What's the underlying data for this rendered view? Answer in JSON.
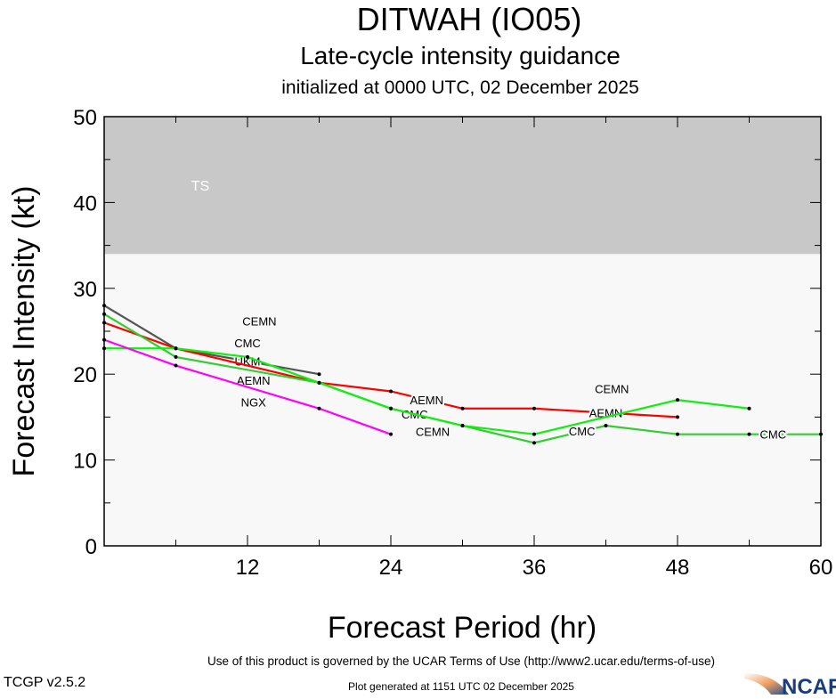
{
  "chart_data": {
    "type": "line",
    "title": "DITWAH (IO05)",
    "subtitle": "Late-cycle intensity guidance",
    "subtitle2": "initialized at 0000 UTC, 02 December 2025",
    "xlabel": "Forecast Period (hr)",
    "ylabel": "Forecast Intensity (kt)",
    "xlim": [
      0,
      60
    ],
    "ylim": [
      0,
      50
    ],
    "xticks": [
      12,
      24,
      36,
      48,
      60
    ],
    "yticks": [
      0,
      10,
      20,
      30,
      40,
      50
    ],
    "bands": [
      {
        "label": "TS",
        "from": 34,
        "to": 50,
        "color": "#c8c8c8"
      }
    ],
    "background_color": "#f8f8f8",
    "series": [
      {
        "name": "UKM",
        "color": "#555555",
        "x": [
          0,
          6,
          18
        ],
        "values": [
          28,
          23,
          20
        ],
        "label_at": [
          12
        ]
      },
      {
        "name": "AEMN",
        "color": "#ff0000",
        "x": [
          0,
          6,
          18,
          24,
          30,
          36,
          48
        ],
        "values": [
          26,
          23,
          19,
          18,
          16,
          16,
          15
        ],
        "label_at": [
          12.5,
          27,
          42
        ]
      },
      {
        "name": "CMC",
        "color": "#33cc33",
        "x": [
          0,
          6,
          18,
          24,
          30,
          36,
          42,
          48,
          54,
          60
        ],
        "values": [
          27,
          22,
          19,
          16,
          14,
          12,
          14,
          13,
          13,
          13
        ],
        "label_at": [
          12,
          26,
          40,
          56
        ]
      },
      {
        "name": "CEMN",
        "color": "#11ee11",
        "x": [
          0,
          6,
          12,
          18,
          24,
          30,
          36,
          48,
          54
        ],
        "values": [
          23,
          23,
          22,
          19,
          16,
          14,
          13,
          17,
          16
        ],
        "label_at": [
          13,
          27.5,
          42.5
        ]
      },
      {
        "name": "NGX",
        "color": "#ff00ff",
        "x": [
          0,
          6,
          18,
          24
        ],
        "values": [
          24,
          21,
          16,
          13
        ],
        "label_at": [
          12.5
        ]
      }
    ]
  },
  "footer": {
    "version": "TCGP v2.5.2",
    "terms": "Use of this product is governed by the UCAR Terms of Use (http://www2.ucar.edu/terms-of-use)",
    "generated": "Plot generated at 1151 UTC   02 December 2025",
    "logo": "NCAR"
  }
}
